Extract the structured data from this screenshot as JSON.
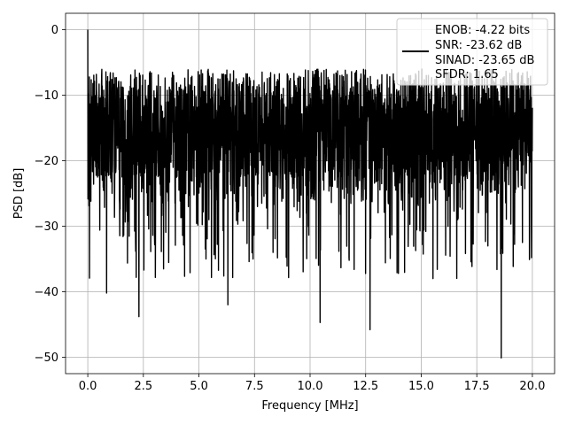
{
  "chart_data": {
    "type": "line",
    "title": "",
    "xlabel": "Frequency [MHz]",
    "ylabel": "PSD [dB]",
    "xlim": [
      -1.0,
      21.0
    ],
    "ylim": [
      -52.5,
      2.5
    ],
    "xticks": [
      0.0,
      2.5,
      5.0,
      7.5,
      10.0,
      12.5,
      15.0,
      17.5,
      20.0
    ],
    "xtick_labels": [
      "0.0",
      "2.5",
      "5.0",
      "7.5",
      "10.0",
      "12.5",
      "15.0",
      "17.5",
      "20.0"
    ],
    "yticks": [
      0,
      -10,
      -20,
      -30,
      -40,
      -50
    ],
    "ytick_labels": [
      "0",
      "−10",
      "−20",
      "−30",
      "−40",
      "−50"
    ],
    "grid": true,
    "legend": {
      "placement": "top-right",
      "lines": [
        "ENOB: -4.22 bits",
        "SNR: -23.62 dB",
        "SINAD: -23.65 dB",
        "SFDR: 1.65"
      ]
    },
    "series": [
      {
        "color": "#000000",
        "x_range": [
          0.0,
          20.0
        ],
        "peak": {
          "x": 0.0,
          "y": 0.0
        },
        "noise_floor_mean": -18.5,
        "noise_upper_envelope": -8.5,
        "notable_minima": [
          {
            "x": 0.85,
            "y": -40.2
          },
          {
            "x": 2.3,
            "y": -43.8
          },
          {
            "x": 6.3,
            "y": -42.0
          },
          {
            "x": 10.45,
            "y": -44.7
          },
          {
            "x": 12.7,
            "y": -45.8
          },
          {
            "x": 18.6,
            "y": -50.1
          }
        ]
      }
    ]
  }
}
